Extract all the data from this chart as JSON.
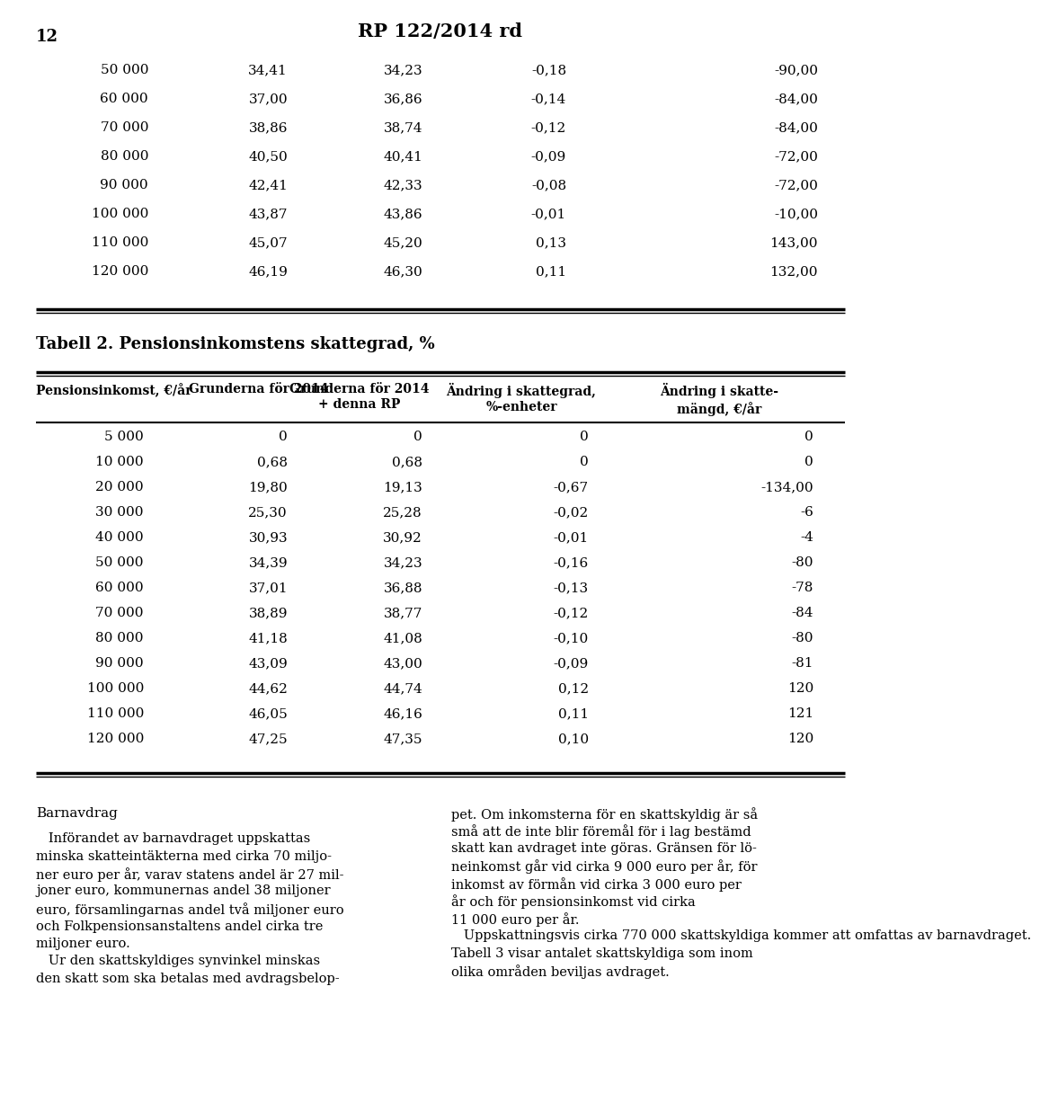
{
  "page_number": "12",
  "page_title": "RP 122/2014 rd",
  "top_table_rows": [
    [
      "50 000",
      "34,41",
      "34,23",
      "-0,18",
      "-90,00"
    ],
    [
      "60 000",
      "37,00",
      "36,86",
      "-0,14",
      "-84,00"
    ],
    [
      "70 000",
      "38,86",
      "38,74",
      "-0,12",
      "-84,00"
    ],
    [
      "80 000",
      "40,50",
      "40,41",
      "-0,09",
      "-72,00"
    ],
    [
      "90 000",
      "42,41",
      "42,33",
      "-0,08",
      "-72,00"
    ],
    [
      "100 000",
      "43,87",
      "43,86",
      "-0,01",
      "-10,00"
    ],
    [
      "110 000",
      "45,07",
      "45,20",
      "0,13",
      "143,00"
    ],
    [
      "120 000",
      "46,19",
      "46,30",
      "0,11",
      "132,00"
    ]
  ],
  "table2_title": "Tabell 2. Pensionsinkomstens skattegrad, %",
  "table2_headers": [
    "Pensionsinkomst, €/år",
    "Grunderna för 2014",
    "Grunderna för 2014\n+ denna RP",
    "Ändring i skattegrad,\n%-enheter",
    "Ändring i skatte-\nmängd, €/år"
  ],
  "table2_rows": [
    [
      "5 000",
      "0",
      "0",
      "0",
      "0"
    ],
    [
      "10 000",
      "0,68",
      "0,68",
      "0",
      "0"
    ],
    [
      "20 000",
      "19,80",
      "19,13",
      "-0,67",
      "-134,00"
    ],
    [
      "30 000",
      "25,30",
      "25,28",
      "-0,02",
      "-6"
    ],
    [
      "40 000",
      "30,93",
      "30,92",
      "-0,01",
      "-4"
    ],
    [
      "50 000",
      "34,39",
      "34,23",
      "-0,16",
      "-80"
    ],
    [
      "60 000",
      "37,01",
      "36,88",
      "-0,13",
      "-78"
    ],
    [
      "70 000",
      "38,89",
      "38,77",
      "-0,12",
      "-84"
    ],
    [
      "80 000",
      "41,18",
      "41,08",
      "-0,10",
      "-80"
    ],
    [
      "90 000",
      "43,09",
      "43,00",
      "-0,09",
      "-81"
    ],
    [
      "100 000",
      "44,62",
      "44,74",
      "0,12",
      "120"
    ],
    [
      "110 000",
      "46,05",
      "46,16",
      "0,11",
      "121"
    ],
    [
      "120 000",
      "47,25",
      "47,35",
      "0,10",
      "120"
    ]
  ],
  "left_col_title": "Barnavdrag",
  "left_col_lines": [
    "   Införandet av barnavdraget uppskattas",
    "minska skatteintäkterna med cirka 70 miljo-",
    "ner euro per år, varav statens andel är 27 mil-",
    "joner euro, kommunernas andel 38 miljoner",
    "euro, församlingarnas andel två miljoner euro",
    "och Folkpensionsanstaltens andel cirka tre",
    "miljoner euro.",
    "   Ur den skattskyldiges synvinkel minskas",
    "den skatt som ska betalas med avdragsbelop-"
  ],
  "right_col_lines": [
    "pet. Om inkomsterna för en skattskyldig är så",
    "små att de inte blir föremål för i lag bestämd",
    "skatt kan avdraget inte göras. Gränsen för lö-",
    "neinkomst går vid cirka 9 000 euro per år, för",
    "inkomst av förmån vid cirka 3 000 euro per",
    "år och för pensionsinkomst vid cirka",
    "11 000 euro per år.",
    "   Uppskattningsvis cirka 770 000 skattskyldiga kommer att omfattas av barnavdraget.",
    "Tabell 3 visar antalet skattskyldiga som inom",
    "olika områden beviljas avdraget."
  ]
}
